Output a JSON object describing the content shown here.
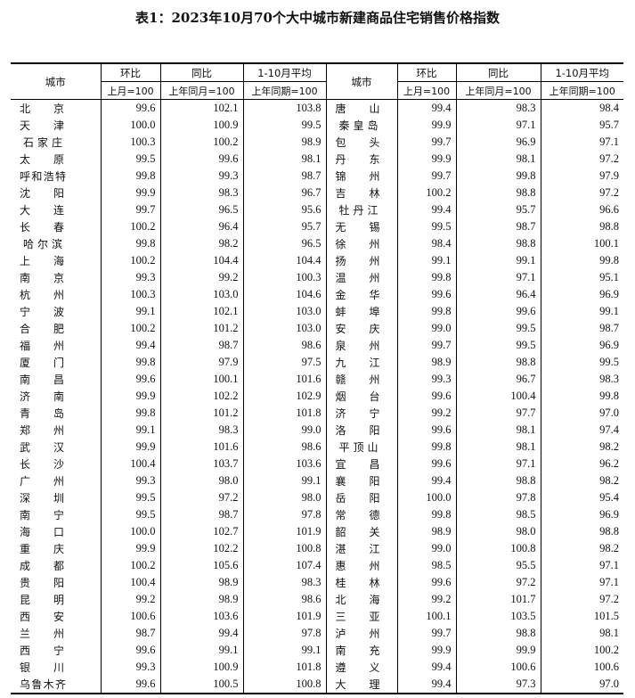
{
  "title": "表1：2023年10月70个大中城市新建商品住宅销售价格指数",
  "headers": {
    "city": "城市",
    "mom": "环比",
    "yoy": "同比",
    "avg": "1-10月平均",
    "mom_base": "上月=100",
    "yoy_base": "上年同月=100",
    "avg_base": "上年同期=100"
  },
  "left_rows": [
    [
      "北京",
      "99.6",
      "102.1",
      "103.8"
    ],
    [
      "天津",
      "100.0",
      "100.9",
      "99.5"
    ],
    [
      "石家庄",
      "100.3",
      "100.2",
      "98.9"
    ],
    [
      "太原",
      "99.5",
      "99.6",
      "98.1"
    ],
    [
      "呼和浩特",
      "99.8",
      "99.3",
      "98.7"
    ],
    [
      "沈阳",
      "99.9",
      "98.3",
      "96.7"
    ],
    [
      "大连",
      "99.7",
      "96.5",
      "95.6"
    ],
    [
      "长春",
      "100.2",
      "96.4",
      "95.7"
    ],
    [
      "哈尔滨",
      "99.8",
      "98.2",
      "96.5"
    ],
    [
      "上海",
      "100.2",
      "104.4",
      "104.4"
    ],
    [
      "南京",
      "99.3",
      "99.2",
      "100.3"
    ],
    [
      "杭州",
      "100.3",
      "103.0",
      "104.6"
    ],
    [
      "宁波",
      "99.1",
      "102.1",
      "103.0"
    ],
    [
      "合肥",
      "100.2",
      "101.2",
      "103.0"
    ],
    [
      "福州",
      "99.4",
      "98.7",
      "98.6"
    ],
    [
      "厦门",
      "99.8",
      "97.9",
      "97.5"
    ],
    [
      "南昌",
      "99.6",
      "100.1",
      "101.6"
    ],
    [
      "济南",
      "99.9",
      "102.2",
      "102.9"
    ],
    [
      "青岛",
      "99.8",
      "101.2",
      "101.8"
    ],
    [
      "郑州",
      "99.1",
      "98.3",
      "99.0"
    ],
    [
      "武汉",
      "99.9",
      "101.6",
      "98.6"
    ],
    [
      "长沙",
      "100.4",
      "103.7",
      "103.6"
    ],
    [
      "广州",
      "99.3",
      "98.0",
      "99.1"
    ],
    [
      "深圳",
      "99.5",
      "97.2",
      "98.0"
    ],
    [
      "南宁",
      "99.5",
      "98.7",
      "97.8"
    ],
    [
      "海口",
      "100.0",
      "102.7",
      "101.9"
    ],
    [
      "重庆",
      "99.9",
      "102.2",
      "100.8"
    ],
    [
      "成都",
      "100.2",
      "105.6",
      "107.4"
    ],
    [
      "贵阳",
      "100.4",
      "98.9",
      "98.3"
    ],
    [
      "昆明",
      "99.2",
      "98.9",
      "98.6"
    ],
    [
      "西安",
      "100.6",
      "103.6",
      "101.9"
    ],
    [
      "兰州",
      "98.7",
      "99.4",
      "97.8"
    ],
    [
      "西宁",
      "99.6",
      "99.1",
      "99.1"
    ],
    [
      "银川",
      "99.3",
      "100.9",
      "101.8"
    ],
    [
      "乌鲁木齐",
      "99.6",
      "100.5",
      "100.8"
    ]
  ],
  "right_rows": [
    [
      "唐山",
      "99.4",
      "98.3",
      "98.4"
    ],
    [
      "秦皇岛",
      "99.9",
      "97.1",
      "95.7"
    ],
    [
      "包头",
      "99.7",
      "96.9",
      "97.1"
    ],
    [
      "丹东",
      "99.9",
      "98.1",
      "97.2"
    ],
    [
      "锦州",
      "99.7",
      "99.8",
      "97.9"
    ],
    [
      "吉林",
      "100.2",
      "98.8",
      "97.2"
    ],
    [
      "牡丹江",
      "99.4",
      "95.7",
      "96.6"
    ],
    [
      "无锡",
      "99.5",
      "98.7",
      "98.8"
    ],
    [
      "徐州",
      "98.4",
      "98.8",
      "100.1"
    ],
    [
      "扬州",
      "99.1",
      "99.1",
      "99.8"
    ],
    [
      "温州",
      "99.8",
      "97.1",
      "95.1"
    ],
    [
      "金华",
      "99.6",
      "96.4",
      "96.9"
    ],
    [
      "蚌埠",
      "99.8",
      "99.6",
      "99.1"
    ],
    [
      "安庆",
      "99.0",
      "99.5",
      "98.7"
    ],
    [
      "泉州",
      "99.7",
      "99.5",
      "96.9"
    ],
    [
      "九江",
      "98.9",
      "98.8",
      "99.5"
    ],
    [
      "赣州",
      "99.3",
      "96.7",
      "98.3"
    ],
    [
      "烟台",
      "99.6",
      "100.4",
      "99.8"
    ],
    [
      "济宁",
      "99.2",
      "97.7",
      "97.0"
    ],
    [
      "洛阳",
      "99.6",
      "98.1",
      "97.4"
    ],
    [
      "平顶山",
      "99.8",
      "98.1",
      "98.2"
    ],
    [
      "宜昌",
      "99.6",
      "97.1",
      "96.2"
    ],
    [
      "襄阳",
      "99.4",
      "98.8",
      "98.2"
    ],
    [
      "岳阳",
      "100.0",
      "97.8",
      "95.4"
    ],
    [
      "常德",
      "99.8",
      "98.5",
      "96.9"
    ],
    [
      "韶关",
      "98.9",
      "98.0",
      "98.8"
    ],
    [
      "湛江",
      "99.0",
      "100.8",
      "98.2"
    ],
    [
      "惠州",
      "98.5",
      "95.5",
      "97.1"
    ],
    [
      "桂林",
      "99.6",
      "97.2",
      "97.1"
    ],
    [
      "北海",
      "99.2",
      "101.7",
      "97.2"
    ],
    [
      "三亚",
      "100.1",
      "103.5",
      "101.5"
    ],
    [
      "泸州",
      "99.7",
      "98.8",
      "98.1"
    ],
    [
      "南充",
      "99.9",
      "99.9",
      "100.2"
    ],
    [
      "遵义",
      "99.4",
      "100.6",
      "100.6"
    ],
    [
      "大理",
      "99.4",
      "97.3",
      "97.0"
    ]
  ]
}
